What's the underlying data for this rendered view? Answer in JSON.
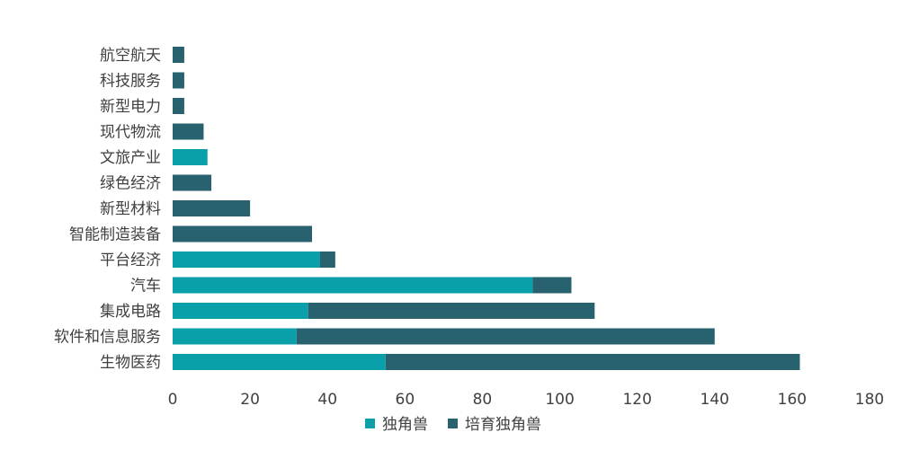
{
  "chart_data": {
    "type": "bar",
    "orientation": "horizontal",
    "stacked": true,
    "categories": [
      "生物医药",
      "软件和信息服务",
      "集成电路",
      "汽车",
      "平台经济",
      "智能制造装备",
      "新型材料",
      "绿色经济",
      "文旅产业",
      "现代物流",
      "新型电力",
      "科技服务",
      "航空航天"
    ],
    "series": [
      {
        "name": "独角兽",
        "color": "#0aa0aa",
        "values": [
          55,
          32,
          35,
          93,
          38,
          0,
          0,
          0,
          9,
          0,
          0,
          0,
          0
        ]
      },
      {
        "name": "培育独角兽",
        "color": "#27626e",
        "values": [
          107,
          108,
          74,
          10,
          4,
          36,
          20,
          10,
          0,
          8,
          3,
          3,
          3
        ]
      }
    ],
    "xlim": [
      0,
      180
    ],
    "xticks": [
      "0",
      "20",
      "40",
      "60",
      "80",
      "100",
      "120",
      "140",
      "160",
      "180"
    ],
    "grid": false,
    "legend_position": "bottom"
  }
}
